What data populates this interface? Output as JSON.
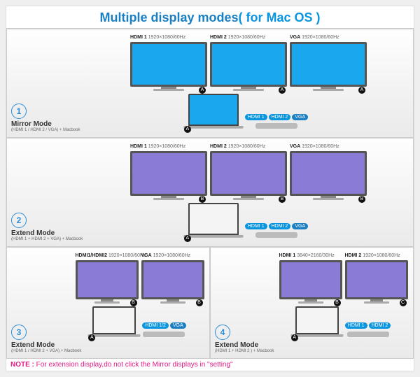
{
  "title_a": "Multiple display modes",
  "title_b": "( for Mac OS )",
  "title_color_a": "#1b7fc4",
  "title_color_b": "#0a95e0",
  "colors": {
    "blue_screen": "#19a7ee",
    "purple_screen": "#8a7bd6",
    "hdmi_tag": "#0a95e0",
    "vga_tag": "#1b7fc4",
    "note": "#e01b84"
  },
  "panels": [
    {
      "num": "1",
      "name": "Mirror Mode",
      "sub": "(HDMI 1 / HDMI 2 / VGA) + Macbook",
      "size": "big",
      "screen_color": "#19a7ee",
      "monitors": [
        {
          "port": "HDMI 1",
          "res": "1920×1080/60Hz",
          "badge": "A"
        },
        {
          "port": "HDMI 2",
          "res": "1920×1080/60Hz",
          "badge": "A"
        },
        {
          "port": "VGA",
          "res": "1920×1080/60Hz",
          "badge": "A"
        }
      ],
      "tags": [
        {
          "t": "HDMI 1",
          "c": "#0a95e0"
        },
        {
          "t": "HDMI 2",
          "c": "#0a95e0"
        },
        {
          "t": "VGA",
          "c": "#1b7fc4"
        }
      ],
      "lap_badge": "A"
    },
    {
      "num": "2",
      "name": "Extend Mode",
      "sub": "(HDMI 1 + HDMI 2 + VGA) + Macbook",
      "size": "big",
      "screen_color": "#8a7bd6",
      "monitors": [
        {
          "port": "HDMI 1",
          "res": "1920×1080/60Hz",
          "badge": "B"
        },
        {
          "port": "HDMI 2",
          "res": "1920×1080/60Hz",
          "badge": "B"
        },
        {
          "port": "VGA",
          "res": "1920×1080/60Hz",
          "badge": "B"
        }
      ],
      "tags": [
        {
          "t": "HDMI 1",
          "c": "#0a95e0"
        },
        {
          "t": "HDMI 2",
          "c": "#0a95e0"
        },
        {
          "t": "VGA",
          "c": "#1b7fc4"
        }
      ],
      "lap_badge": "A"
    },
    {
      "num": "3",
      "name": "Extend Mode",
      "sub": "(HDMI 1 / HDMI 2 + VGA) + Macbook",
      "size": "small",
      "screen_color": "#8a7bd6",
      "monitors": [
        {
          "port": "HDMI1/HDMI2",
          "res": "1920×1080/60Hz",
          "badge": "B"
        },
        {
          "port": "VGA",
          "res": "1920×1080/60Hz",
          "badge": "B"
        }
      ],
      "tags": [
        {
          "t": "HDMI 1/2",
          "c": "#0a95e0"
        },
        {
          "t": "VGA",
          "c": "#1b7fc4"
        }
      ],
      "lap_badge": "A"
    },
    {
      "num": "4",
      "name": "Extend Mode",
      "sub": "(HDMI 1 + HDMI 2 ) + Macbook",
      "size": "small",
      "screen_color": "#8a7bd6",
      "monitors": [
        {
          "port": "HDMI 1",
          "res": "3840×2160/30Hz",
          "badge": "B"
        },
        {
          "port": "HDMI 2",
          "res": "1920×1080/60Hz",
          "badge": "C"
        }
      ],
      "tags": [
        {
          "t": "HDMI 1",
          "c": "#0a95e0"
        },
        {
          "t": "HDMI 2",
          "c": "#0a95e0"
        }
      ],
      "lap_badge": "A"
    }
  ],
  "note_label": "NOTE :",
  "note_text": " For extension display,do not click the Mirror displays in \"setting\"",
  "sizes": {
    "big": {
      "mw": 110,
      "mh": 64,
      "lw": 72,
      "lh": 46
    },
    "small": {
      "mw": 90,
      "mh": 56,
      "lw": 62,
      "lh": 40
    }
  }
}
